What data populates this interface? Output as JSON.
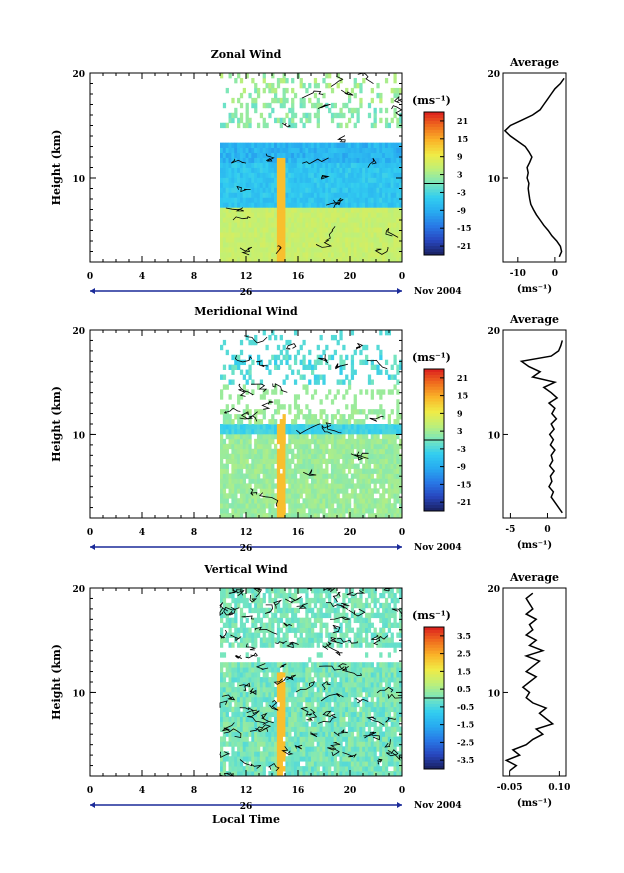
{
  "chart_data": [
    {
      "type": "heatmap",
      "title": "Zonal Wind",
      "ylabel": "Height (km)",
      "yticks": [
        "10",
        "20"
      ],
      "ylim": [
        2,
        20
      ],
      "xticks": [
        "0",
        "4",
        "8",
        "12",
        "16",
        "20",
        "0"
      ],
      "xlim": [
        0,
        24
      ],
      "date_day": "26",
      "date_label": "Nov 2004",
      "data_start_hour": 10,
      "colorbar": {
        "unit": "(ms⁻¹)",
        "ticks": [
          "21",
          "15",
          "9",
          "3",
          "-3",
          "-9",
          "-15",
          "-21"
        ],
        "range": [
          -24,
          24
        ]
      },
      "profile": {
        "title": "Average",
        "xticks": [
          "-10",
          "0"
        ],
        "xlabel": "(ms⁻¹)",
        "xlim": [
          -14,
          3
        ],
        "heights": [
          2.5,
          3,
          3.5,
          4,
          4.5,
          5,
          5.5,
          6,
          6.5,
          7,
          7.5,
          8,
          8.5,
          9,
          9.5,
          10,
          10.5,
          11,
          11.5,
          12,
          12.5,
          13,
          13.5,
          14,
          14.5,
          15,
          15.5,
          16,
          16.5,
          17,
          17.5,
          18,
          18.5,
          19,
          19.5
        ],
        "values": [
          1.2,
          1.8,
          1.5,
          0.5,
          -0.8,
          -1.8,
          -3,
          -4,
          -5,
          -5.8,
          -6.5,
          -6.8,
          -7,
          -7.2,
          -7,
          -7.5,
          -7.2,
          -7.5,
          -6.8,
          -6.2,
          -7,
          -8,
          -10,
          -12,
          -13.5,
          -12,
          -9,
          -6,
          -4,
          -3,
          -2,
          -1,
          0,
          1.5,
          2.5
        ]
      }
    },
    {
      "type": "heatmap",
      "title": "Meridional Wind",
      "ylabel": "Height (km)",
      "yticks": [
        "10",
        "20"
      ],
      "ylim": [
        2,
        20
      ],
      "xticks": [
        "0",
        "4",
        "8",
        "12",
        "16",
        "20",
        "0"
      ],
      "xlim": [
        0,
        24
      ],
      "date_day": "26",
      "date_label": "Nov 2004",
      "data_start_hour": 10,
      "colorbar": {
        "unit": "(ms⁻¹)",
        "ticks": [
          "21",
          "15",
          "9",
          "3",
          "-3",
          "-9",
          "-15",
          "-21"
        ],
        "range": [
          -24,
          24
        ]
      },
      "profile": {
        "title": "Average",
        "xticks": [
          "-5",
          "0"
        ],
        "xlabel": "(ms⁻¹)",
        "xlim": [
          -6,
          2.5
        ],
        "heights": [
          2.5,
          3,
          3.5,
          4,
          4.5,
          5,
          5.5,
          6,
          6.5,
          7,
          7.5,
          8,
          8.5,
          9,
          9.5,
          10,
          10.5,
          11,
          11.5,
          12,
          12.5,
          13,
          13.5,
          14,
          14.5,
          15,
          15.5,
          16,
          16.5,
          17,
          17.5,
          18,
          18.5,
          19
        ],
        "values": [
          2.0,
          1.5,
          1.0,
          0.5,
          0.8,
          0.2,
          0.6,
          0.4,
          0.9,
          0.3,
          0.7,
          0.5,
          1.0,
          0.4,
          0.8,
          0.3,
          0.9,
          0.5,
          1.2,
          0.6,
          1.0,
          0.2,
          1.3,
          0.5,
          -0.5,
          1.0,
          -2.0,
          -1.0,
          -2.5,
          -3.5,
          0.5,
          1.5,
          1.8,
          2.0
        ]
      }
    },
    {
      "type": "heatmap",
      "title": "Vertical Wind",
      "xlabel": "Local Time",
      "ylabel": "Height (km)",
      "yticks": [
        "10",
        "20"
      ],
      "ylim": [
        2,
        20
      ],
      "xticks": [
        "0",
        "4",
        "8",
        "12",
        "16",
        "20",
        "0"
      ],
      "xlim": [
        0,
        24
      ],
      "date_day": "26",
      "date_label": "Nov 2004",
      "data_start_hour": 10,
      "colorbar": {
        "unit": "(ms⁻¹)",
        "ticks": [
          "3.5",
          "2.5",
          "1.5",
          "0.5",
          "-0.5",
          "-1.5",
          "-2.5",
          "-3.5"
        ],
        "range": [
          -4,
          4
        ]
      },
      "profile": {
        "title": "Average",
        "xticks": [
          "-0.05",
          "0.10"
        ],
        "xlabel": "(ms⁻¹)",
        "xlim": [
          -0.07,
          0.12
        ],
        "heights": [
          2.5,
          3,
          3.5,
          4,
          4.5,
          5,
          5.5,
          6,
          6.5,
          7,
          7.5,
          8,
          8.5,
          9,
          9.5,
          10,
          10.5,
          11,
          11.5,
          12,
          12.5,
          13,
          13.5,
          14,
          14.5,
          15,
          15.5,
          16,
          16.5,
          17,
          17.5,
          18,
          18.5,
          19,
          19.5
        ],
        "values": [
          -0.05,
          -0.03,
          -0.06,
          -0.02,
          -0.04,
          0.0,
          0.02,
          0.05,
          0.03,
          0.08,
          0.06,
          0.04,
          0.06,
          0.02,
          0.0,
          0.01,
          -0.01,
          0.01,
          0.03,
          0.0,
          0.02,
          0.04,
          0.0,
          0.05,
          0.01,
          0.03,
          0.0,
          0.02,
          0.01,
          0.03,
          0.0,
          0.02,
          0.01,
          0.0,
          0.02
        ]
      }
    }
  ]
}
